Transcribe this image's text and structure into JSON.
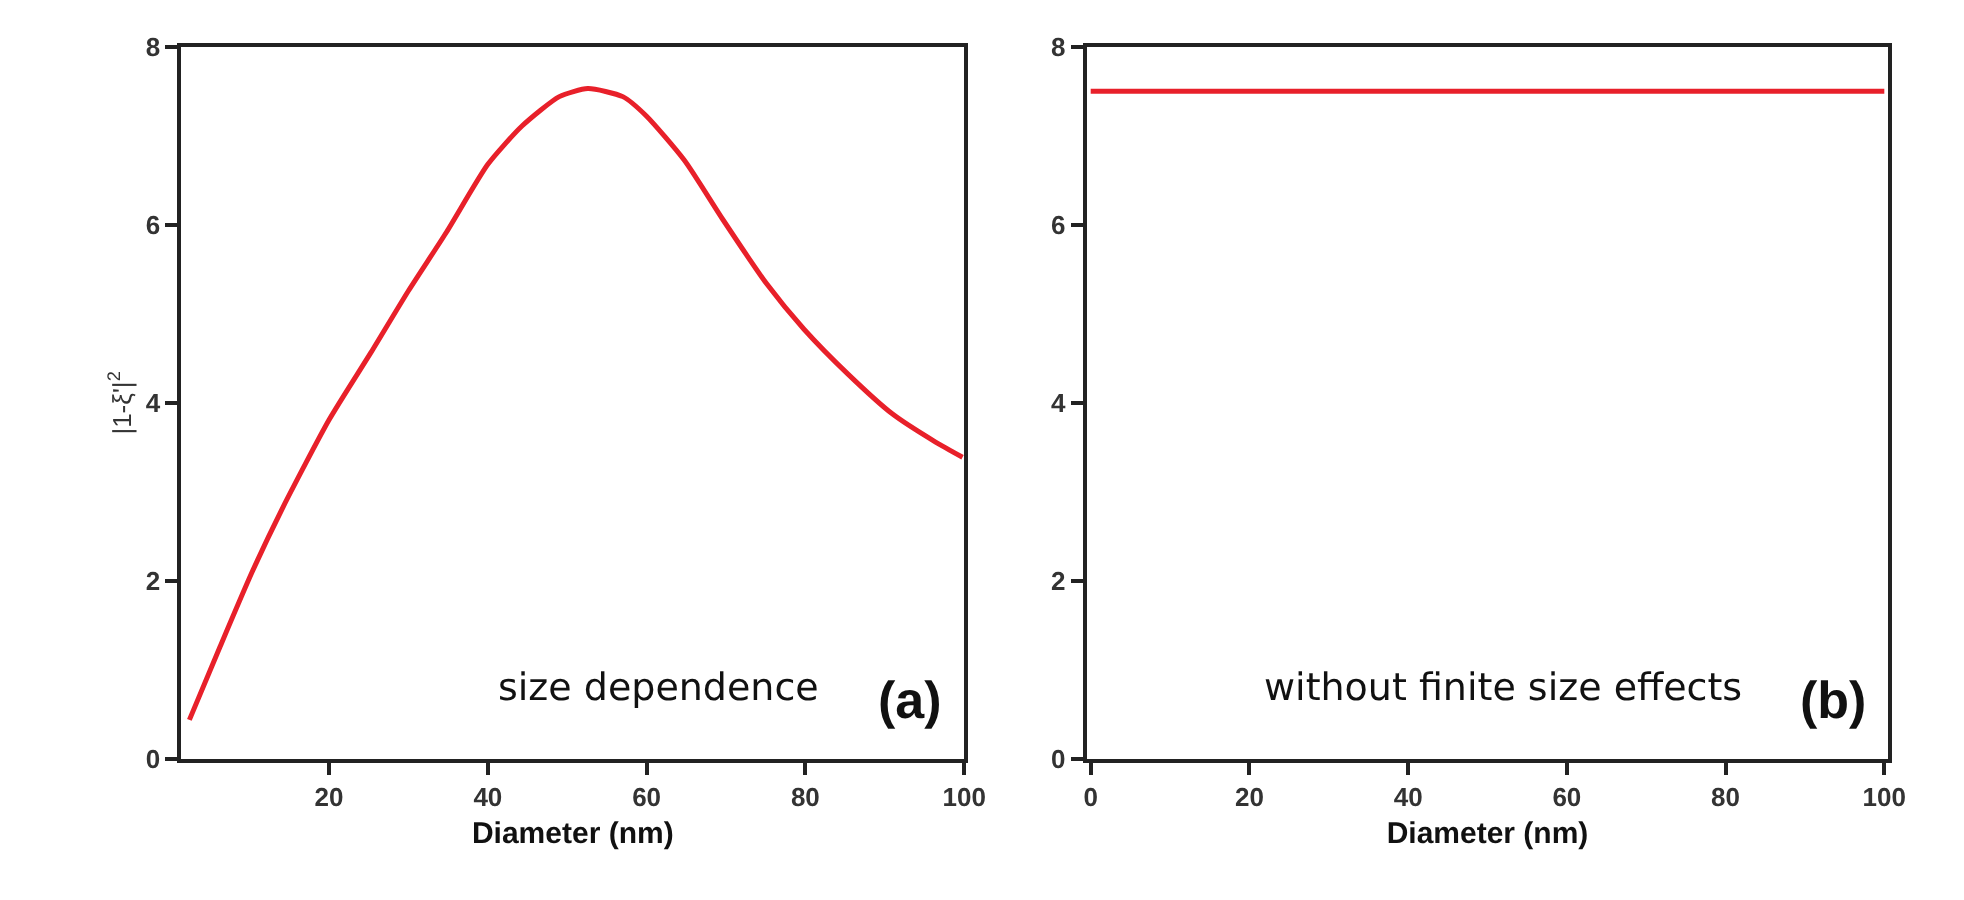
{
  "chart_data": [
    {
      "type": "line",
      "xlabel": "Diameter (nm)",
      "ylabel": "|1-ξ'|$^{2}$",
      "x": [
        2.4,
        6.3,
        10.3,
        14.2,
        20,
        25.3,
        30,
        34.8,
        40,
        44.3,
        49,
        52.6,
        57,
        60,
        64.8,
        69.6,
        75.1,
        79.8,
        85.4,
        90.9,
        96.4,
        99.8
      ],
      "series": [
        {
          "color": "#e8202a",
          "values": [
            0.44,
            1.27,
            2.1,
            2.83,
            3.81,
            4.57,
            5.26,
            5.92,
            6.68,
            7.11,
            7.44,
            7.53,
            7.44,
            7.22,
            6.72,
            6.06,
            5.34,
            4.83,
            4.32,
            3.88,
            3.56,
            3.39
          ]
        }
      ],
      "xlim": [
        1.4,
        100
      ],
      "xticks": [
        20,
        40,
        60,
        80,
        100
      ],
      "ylim": [
        0,
        8
      ],
      "yticks": [
        0,
        2,
        4,
        6,
        8
      ],
      "marker": "none",
      "line_style": "solid",
      "annotations": [
        "size dependence",
        "(a)"
      ]
    },
    {
      "type": "line",
      "xlabel": "Diameter (nm)",
      "x": [
        0,
        100
      ],
      "series": [
        {
          "color": "#e8202a",
          "values": [
            7.5,
            7.5
          ]
        }
      ],
      "xlim": [
        -0.5,
        100.5
      ],
      "xticks": [
        0,
        20,
        40,
        60,
        80,
        100
      ],
      "ylim": [
        0,
        8
      ],
      "yticks": [
        0,
        2,
        4,
        6,
        8
      ],
      "marker": "none",
      "line_style": "solid",
      "annotations": [
        "without finite size effects",
        "(b)"
      ]
    }
  ]
}
